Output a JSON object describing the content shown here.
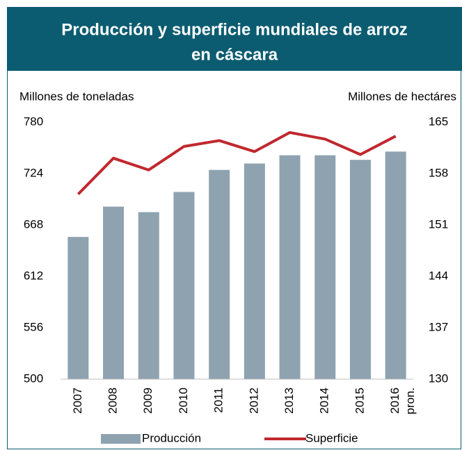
{
  "chart_data": {
    "type": "bar_line",
    "title": "Producción y superficie mundiales de arroz",
    "title_line2": "en cáscara",
    "y_label": "Millones de toneladas",
    "y2_label": "Millones de  hectáres",
    "categories": [
      "2007",
      "2008",
      "2009",
      "2010",
      "2011",
      "2012",
      "2013",
      "2014",
      "2015",
      "2016"
    ],
    "x_note": "pron.",
    "series": [
      {
        "name": "Producción",
        "type": "bar",
        "color": "#8ea2b0",
        "values": [
          655,
          688,
          682,
          704,
          728,
          735,
          744,
          744,
          739,
          748
        ]
      },
      {
        "name": "Superficie",
        "type": "line",
        "axis": "y2",
        "color": "#c0282e",
        "values": [
          155.2,
          160.1,
          158.5,
          161.7,
          162.5,
          161.0,
          163.6,
          162.7,
          160.6,
          163.1
        ]
      }
    ],
    "ylim": [
      500,
      780
    ],
    "yticks": [
      500,
      556,
      612,
      668,
      724,
      780
    ],
    "y2lim": [
      130,
      165
    ],
    "y2ticks": [
      130,
      137,
      144,
      151,
      158,
      165
    ],
    "grid": false,
    "legend": "bottom"
  }
}
